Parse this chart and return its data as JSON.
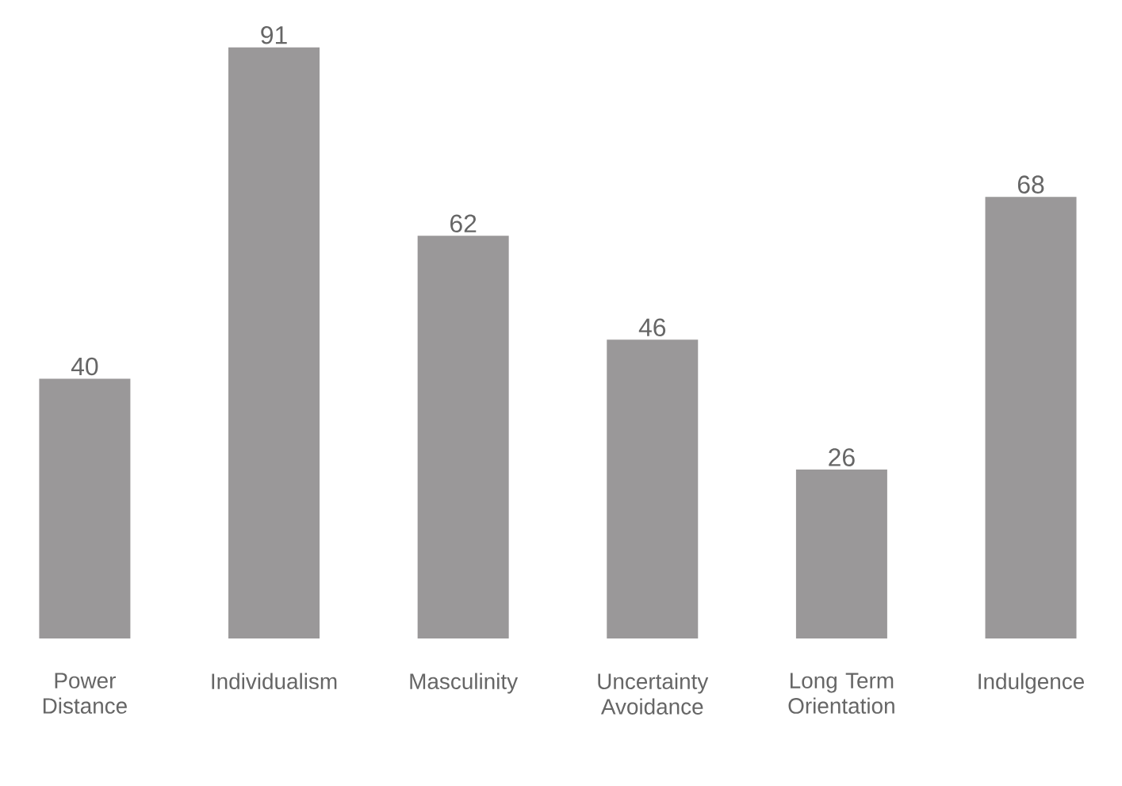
{
  "chart_data": {
    "type": "bar",
    "categories": [
      "Power Distance",
      "Individualism",
      "Masculinity",
      "Uncertainty Avoidance",
      "Long Term Orientation",
      "Indulgence"
    ],
    "values": [
      40,
      91,
      62,
      46,
      26,
      68
    ],
    "color": "#9a9899",
    "data_labels": true
  }
}
